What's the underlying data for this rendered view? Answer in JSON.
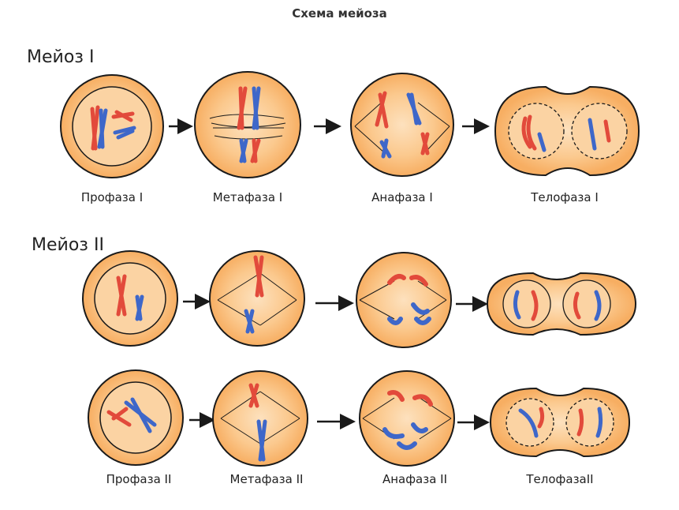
{
  "title": "Схема мейоза",
  "sections": {
    "meiosis1": "Мейоз I",
    "meiosis2": "Мейоз II"
  },
  "stages": {
    "row1": [
      "Профаза I",
      "Метафаза I",
      "Анафаза I",
      "Телофаза I"
    ],
    "row3": [
      "Профаза II",
      "Метафаза II",
      "Анафаза II",
      "ТелофазаII"
    ]
  },
  "colors": {
    "cell_fill": "#F7B26B",
    "cell_center": "#FDE1BE",
    "outline": "#1a1a1a",
    "chromosome_red": "#E24A3B",
    "chromosome_blue": "#3E67C9"
  }
}
